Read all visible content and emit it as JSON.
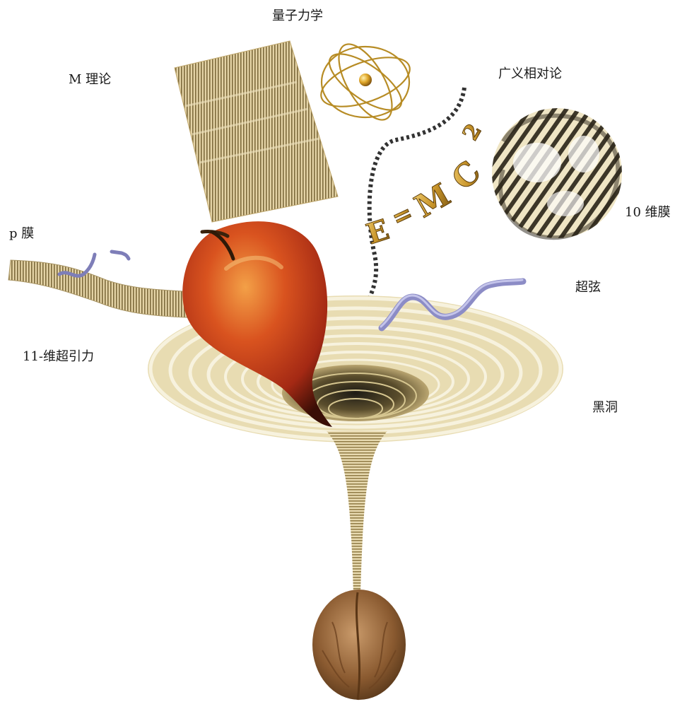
{
  "labels": {
    "quantum_mechanics": "量子力学",
    "m_theory": "M 理论",
    "general_relativity": "广义相对论",
    "p_brane": "p 膜",
    "ten_dim_brane": "10 维膜",
    "superstring": "超弦",
    "supergravity": "11-维超引力",
    "black_hole": "黑洞"
  },
  "equation": {
    "letters": [
      "E",
      "=",
      "M",
      "C",
      "2"
    ]
  },
  "colors": {
    "gold": "#c9a545",
    "gold_dark": "#8a6a1c",
    "apple_red": "#c8361a",
    "apple_orange": "#e8772c",
    "walnut": "#9a6a3c",
    "string_blue": "#8c8cc6"
  },
  "icons": {
    "atom": "atom-icon",
    "apple": "apple-icon",
    "walnut": "walnut-icon",
    "knot": "knot-icon"
  }
}
